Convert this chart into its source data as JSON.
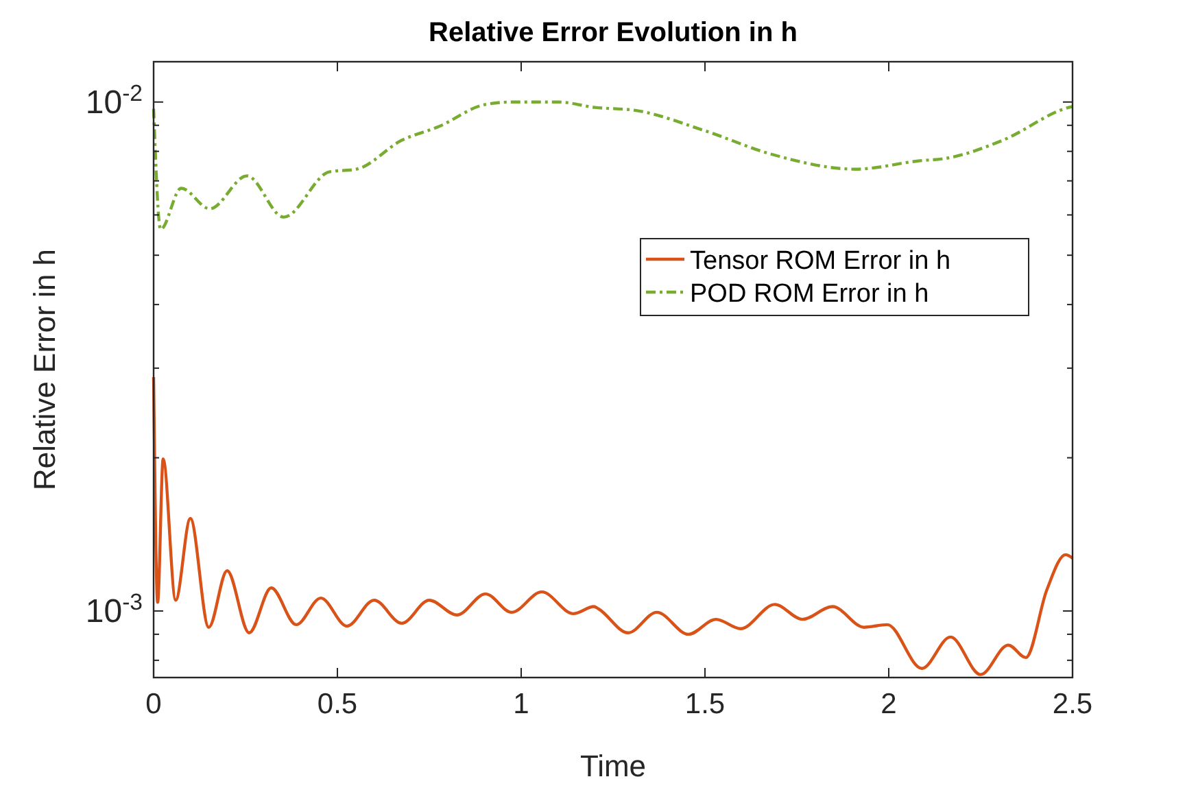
{
  "chart_data": {
    "type": "line",
    "title": "Relative Error Evolution in h",
    "xlabel": "Time",
    "ylabel": "Relative Error in h",
    "log": "y",
    "legend": "right",
    "grid": false,
    "xlim": [
      0,
      2.5
    ],
    "xticks": [
      0,
      0.5,
      1,
      1.5,
      2,
      2.5
    ],
    "ylim": [
      0.00074,
      0.012
    ],
    "yticks": [
      {
        "value": 0.0008,
        "label": null
      },
      {
        "value": 0.0009,
        "label": null
      },
      {
        "value": 0.001,
        "label": "10$^{-3}$"
      },
      {
        "value": 0.002,
        "label": null
      },
      {
        "value": 0.003,
        "label": null
      },
      {
        "value": 0.004,
        "label": null
      },
      {
        "value": 0.005,
        "label": null
      },
      {
        "value": 0.006,
        "label": null
      },
      {
        "value": 0.007,
        "label": null
      },
      {
        "value": 0.008,
        "label": null
      },
      {
        "value": 0.009,
        "label": null
      },
      {
        "value": 0.01,
        "label": "10$^{-2}$"
      }
    ],
    "series": [
      {
        "name": "Tensor ROM Error in h",
        "color": "#d95319",
        "line_style": "solid",
        "x": [
          0,
          0.011,
          0.026,
          0.06,
          0.1,
          0.15,
          0.2,
          0.26,
          0.32,
          0.388,
          0.455,
          0.526,
          0.6,
          0.675,
          0.75,
          0.825,
          0.903,
          0.974,
          1.056,
          1.142,
          1.198,
          1.21,
          1.291,
          1.369,
          1.455,
          1.53,
          1.597,
          1.69,
          1.765,
          1.847,
          1.933,
          1.996,
          2.09,
          2.168,
          2.25,
          2.325,
          2.373,
          2.43,
          2.481,
          2.5
        ],
        "values": [
          0.00288,
          0.00104,
          0.00199,
          0.00105,
          0.00152,
          0.000929,
          0.0012,
          0.000906,
          0.00111,
          0.00094,
          0.00106,
          0.000934,
          0.00105,
          0.000946,
          0.00105,
          0.000982,
          0.00108,
          0.000994,
          0.00109,
          0.000988,
          0.00102,
          0.00101,
          0.000906,
          0.000994,
          0.0009,
          0.000963,
          0.000923,
          0.00103,
          0.000963,
          0.00102,
          0.000929,
          0.00094,
          0.000771,
          0.000889,
          0.00075,
          0.000857,
          0.00081,
          0.0011,
          0.00129,
          0.00127
        ]
      },
      {
        "name": "POD ROM Error in h",
        "color": "#77ac30",
        "line_style": "dashed",
        "x": [
          0,
          0.019,
          0.075,
          0.153,
          0.254,
          0.354,
          0.478,
          0.552,
          0.675,
          0.776,
          0.9,
          0.974,
          1.1,
          1.2,
          1.31,
          1.5,
          1.68,
          1.91,
          2.08,
          2.16,
          2.31,
          2.49,
          2.5
        ],
        "values": [
          0.0097,
          0.00562,
          0.00677,
          0.00617,
          0.00716,
          0.00594,
          0.00729,
          0.00738,
          0.00841,
          0.00895,
          0.00988,
          0.01,
          0.01,
          0.00976,
          0.00963,
          0.00878,
          0.0079,
          0.00738,
          0.00766,
          0.00776,
          0.00841,
          0.00976,
          0.0098
        ]
      }
    ]
  }
}
